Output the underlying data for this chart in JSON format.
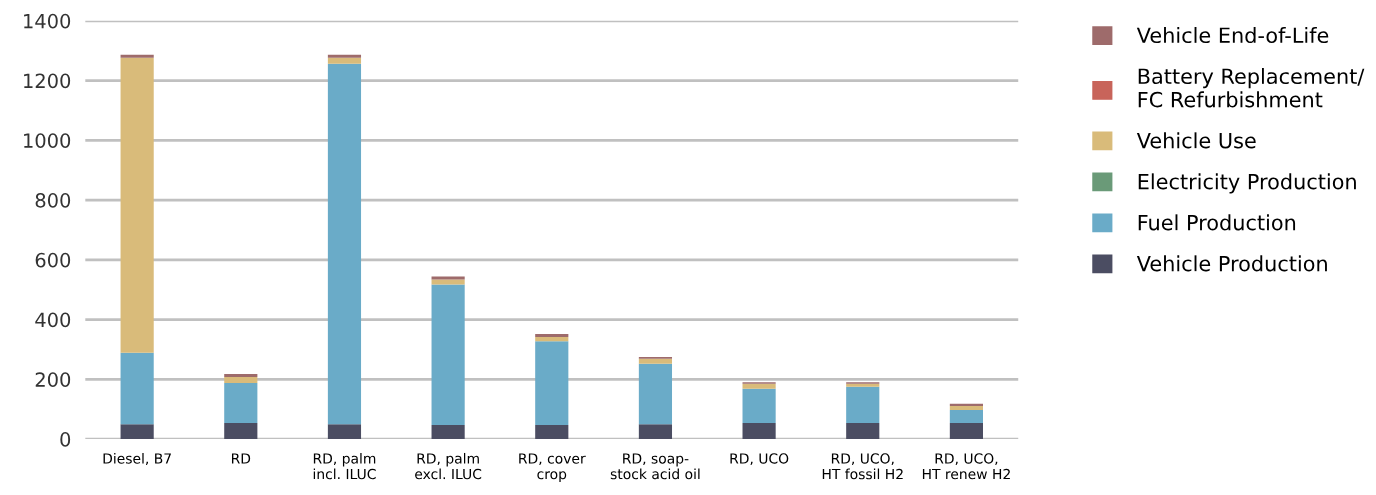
{
  "chart_data": {
    "type": "bar",
    "stacked": true,
    "categories": [
      "Diesel, B7",
      "RD",
      "RD, palm\nincl. ILUC",
      "RD, palm\nexcl. ILUC",
      "RD, cover\ncrop",
      "RD, soap-\nstock acid oil",
      "RD, UCO",
      "RD, UCO,\nHT fossil H2",
      "RD, UCO,\nHT renew H2"
    ],
    "series": [
      {
        "name": "Vehicle Production",
        "color": "#4b4d62",
        "values": [
          50,
          54,
          50,
          47,
          47,
          50,
          54,
          54,
          54
        ]
      },
      {
        "name": "Fuel Production",
        "color": "#6aabc8",
        "values": [
          239,
          134,
          1206,
          470,
          280,
          202,
          114,
          121,
          43
        ]
      },
      {
        "name": "Electricity Production",
        "color": "#6a9a78",
        "values": [
          0,
          0,
          0,
          0,
          0,
          0,
          0,
          0,
          0
        ]
      },
      {
        "name": "Vehicle Use",
        "color": "#d9bb7a",
        "values": [
          987,
          20,
          20,
          17,
          15,
          17,
          17,
          10,
          14
        ]
      },
      {
        "name": "Battery Replacement/\nFC Refurbishment",
        "color": "#c8645a",
        "values": [
          0,
          0,
          0,
          0,
          0,
          0,
          0,
          0,
          0
        ]
      },
      {
        "name": "Vehicle End-of-Life",
        "color": "#9e6b6b",
        "values": [
          10,
          10,
          10,
          10,
          10,
          6,
          5,
          5,
          7
        ]
      }
    ],
    "ylim": [
      0,
      1400
    ],
    "yticks": [
      0,
      200,
      400,
      600,
      800,
      1000,
      1200,
      1400
    ],
    "grid": "y",
    "legend": "right"
  }
}
